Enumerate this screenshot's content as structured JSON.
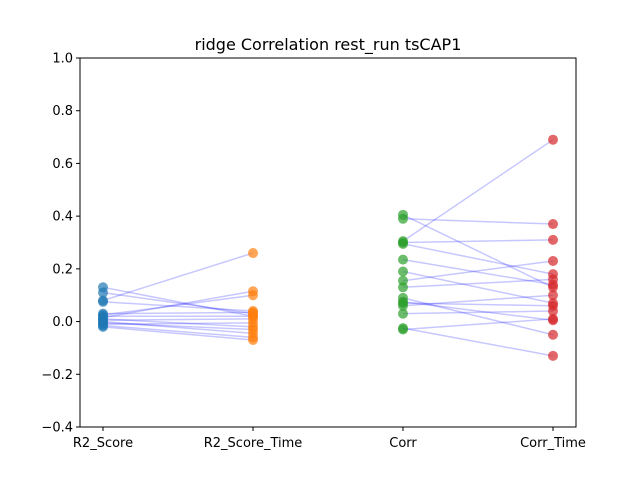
{
  "chart_data": {
    "type": "scatter",
    "title": "ridge Correlation rest_run tsCAP1",
    "xlabel": "",
    "ylabel": "",
    "categories": [
      "R2_Score",
      "R2_Score_Time",
      "Corr",
      "Corr_Time"
    ],
    "ylim": [
      -0.4,
      1.0
    ],
    "yticks": [
      -0.4,
      -0.2,
      0.0,
      0.2,
      0.4,
      0.6,
      0.8,
      1.0
    ],
    "ytick_labels": [
      "−0.4",
      "−0.2",
      "0.0",
      "0.2",
      "0.4",
      "0.6",
      "0.8",
      "1.0"
    ],
    "grid": false,
    "colors": {
      "R2_Score": "#1f77b4",
      "R2_Score_Time": "#ff7f0e",
      "Corr": "#2ca02c",
      "Corr_Time": "#d62728",
      "lines": "#0000ff"
    },
    "pairs": [
      {
        "from": "R2_Score",
        "to": "R2_Score_Time",
        "values": [
          [
            0.13,
            0.02
          ],
          [
            0.11,
            0.03
          ],
          [
            0.08,
            0.26
          ],
          [
            0.075,
            0.04
          ],
          [
            0.03,
            0.035
          ],
          [
            0.025,
            0.1
          ],
          [
            0.02,
            0.02
          ],
          [
            0.015,
            0.115
          ],
          [
            0.01,
            -0.02
          ],
          [
            0.005,
            0.01
          ],
          [
            0.0,
            -0.045
          ],
          [
            -0.005,
            -0.03
          ],
          [
            -0.01,
            -0.005
          ],
          [
            -0.015,
            -0.06
          ],
          [
            -0.02,
            -0.07
          ]
        ]
      },
      {
        "from": "Corr",
        "to": "Corr_Time",
        "values": [
          [
            0.405,
            0.13
          ],
          [
            0.39,
            0.37
          ],
          [
            0.305,
            0.69
          ],
          [
            0.3,
            0.31
          ],
          [
            0.295,
            0.18
          ],
          [
            0.235,
            0.14
          ],
          [
            0.19,
            0.07
          ],
          [
            0.155,
            0.23
          ],
          [
            0.13,
            0.16
          ],
          [
            0.09,
            -0.05
          ],
          [
            0.075,
            0.005
          ],
          [
            0.07,
            0.06
          ],
          [
            0.06,
            0.1
          ],
          [
            0.03,
            0.04
          ],
          [
            -0.025,
            -0.13
          ],
          [
            -0.03,
            0.01
          ]
        ]
      }
    ]
  }
}
